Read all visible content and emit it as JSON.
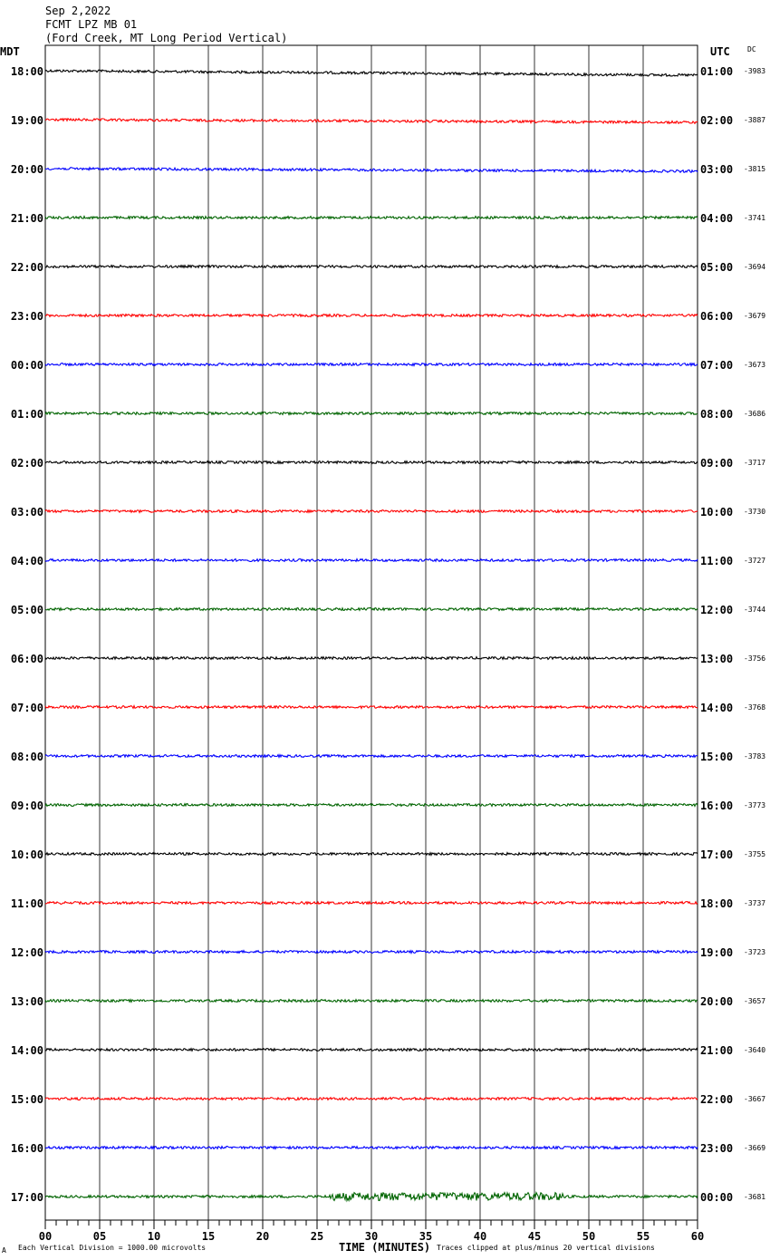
{
  "header": {
    "date": "Sep 2,2022",
    "station": "FCMT LPZ MB 01",
    "location": "(Ford Creek, MT Long Period Vertical)"
  },
  "axis": {
    "left_tz": "MDT",
    "right_tz": "UTC",
    "dc_label": "DC",
    "xlabel": "TIME (MINUTES)",
    "footer_left": "Each Vertical Division = 1000.00 microvolts",
    "footer_right": "Traces clipped at plus/minus 20 vertical divisions",
    "footer_mark": "A"
  },
  "colors": [
    "#000000",
    "#ff0000",
    "#0000ff",
    "#006400"
  ],
  "chart_data": {
    "type": "line",
    "title": "FCMT LPZ MB 01",
    "xlabel": "TIME (MINUTES)",
    "xlim": [
      0,
      60
    ],
    "x_ticks": [
      "00",
      "05",
      "10",
      "15",
      "20",
      "25",
      "30",
      "35",
      "40",
      "45",
      "50",
      "55",
      "60"
    ],
    "rows_local": [
      "18:00",
      "19:00",
      "20:00",
      "21:00",
      "22:00",
      "23:00",
      "00:00",
      "01:00",
      "02:00",
      "03:00",
      "04:00",
      "05:00",
      "06:00",
      "07:00",
      "08:00",
      "09:00",
      "10:00",
      "11:00",
      "12:00",
      "13:00",
      "14:00",
      "15:00",
      "16:00",
      "17:00"
    ],
    "rows_utc": [
      "01:00",
      "02:00",
      "03:00",
      "04:00",
      "05:00",
      "06:00",
      "07:00",
      "08:00",
      "09:00",
      "10:00",
      "11:00",
      "12:00",
      "13:00",
      "14:00",
      "15:00",
      "16:00",
      "17:00",
      "18:00",
      "19:00",
      "20:00",
      "21:00",
      "22:00",
      "23:00",
      "00:00"
    ],
    "dc_offsets": [
      "-3983",
      "-3887",
      "-3815",
      "-3741",
      "-3694",
      "-3679",
      "-3673",
      "-3686",
      "-3717",
      "-3730",
      "-3727",
      "-3744",
      "-3756",
      "-3768",
      "-3783",
      "-3773",
      "-3755",
      "-3737",
      "-3723",
      "-3657",
      "-3640",
      "-3667",
      "-3669",
      "-3681"
    ]
  }
}
